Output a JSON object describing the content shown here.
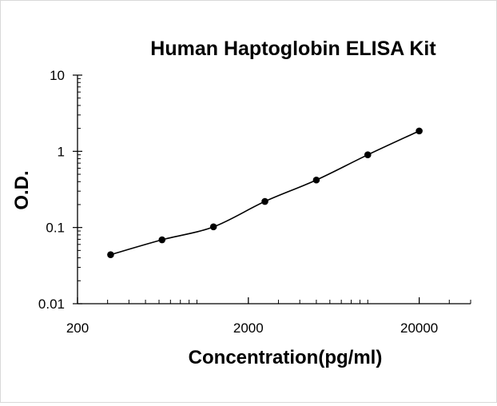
{
  "chart_data": {
    "type": "scatter",
    "title": "Human Haptoglobin ELISA Kit",
    "xlabel": "Concentration(pg/ml)",
    "ylabel": "O.D.",
    "x_scale": "log",
    "y_scale": "log",
    "xlim": [
      200,
      40000
    ],
    "ylim": [
      0.01,
      10
    ],
    "x_tick_labels": [
      "200",
      "2000",
      "20000"
    ],
    "y_tick_labels": [
      "10",
      "1",
      "0.1",
      "0.01"
    ],
    "grid": false,
    "legend": "none",
    "series": [
      {
        "x": [
          312.5,
          625,
          1250,
          2500,
          5000,
          10000,
          20000
        ],
        "y": [
          0.044,
          0.069,
          0.102,
          0.22,
          0.42,
          0.9,
          1.85
        ],
        "marker_color": "#000000",
        "line_color": "#000000",
        "fit": "smooth"
      }
    ]
  }
}
